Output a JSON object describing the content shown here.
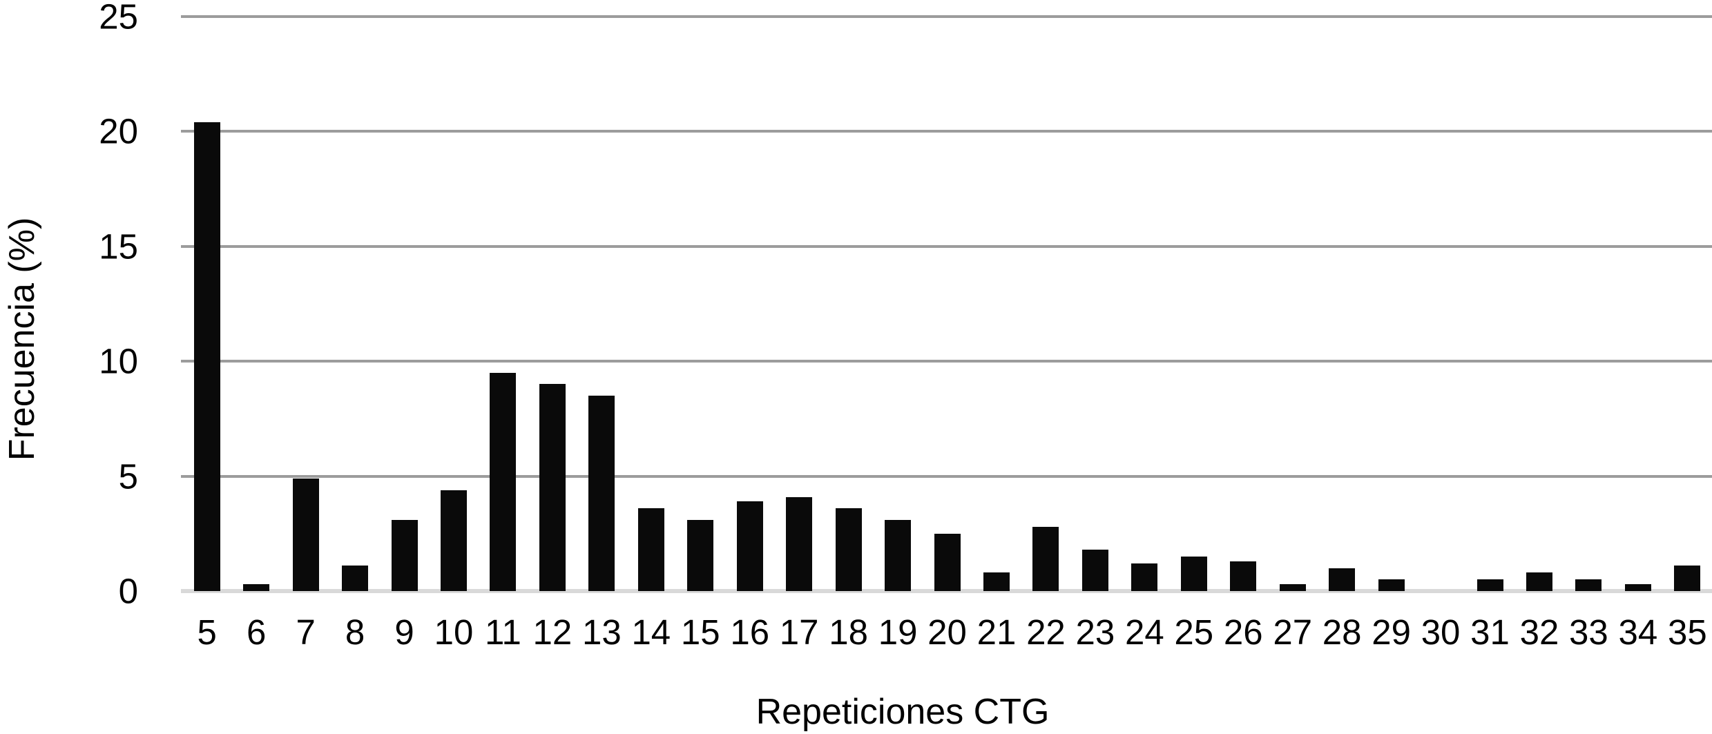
{
  "chart_data": {
    "type": "bar",
    "title": "",
    "xlabel": "Repeticiones CTG",
    "ylabel": "Frecuencia (%)",
    "categories": [
      5,
      6,
      7,
      8,
      9,
      10,
      11,
      12,
      13,
      14,
      15,
      16,
      17,
      18,
      19,
      20,
      21,
      22,
      23,
      24,
      25,
      26,
      27,
      28,
      29,
      30,
      31,
      32,
      33,
      34,
      35
    ],
    "values": [
      20.4,
      0.3,
      4.9,
      1.1,
      3.1,
      4.4,
      9.5,
      9.0,
      8.5,
      3.6,
      3.1,
      3.9,
      4.1,
      3.6,
      3.1,
      2.5,
      0.8,
      2.8,
      1.8,
      1.2,
      1.5,
      1.3,
      0.3,
      1.0,
      0.5,
      0,
      0.5,
      0.8,
      0.5,
      0.3,
      1.1
    ],
    "ylim": [
      0,
      25
    ],
    "yticks": [
      0,
      5,
      10,
      15,
      20,
      25
    ],
    "grid": true,
    "legend": null,
    "colors": {
      "bar": "#0a0a0a",
      "gridline": "#9c9c9c",
      "baseline": "#d9d9d9",
      "text": "#000000"
    }
  }
}
